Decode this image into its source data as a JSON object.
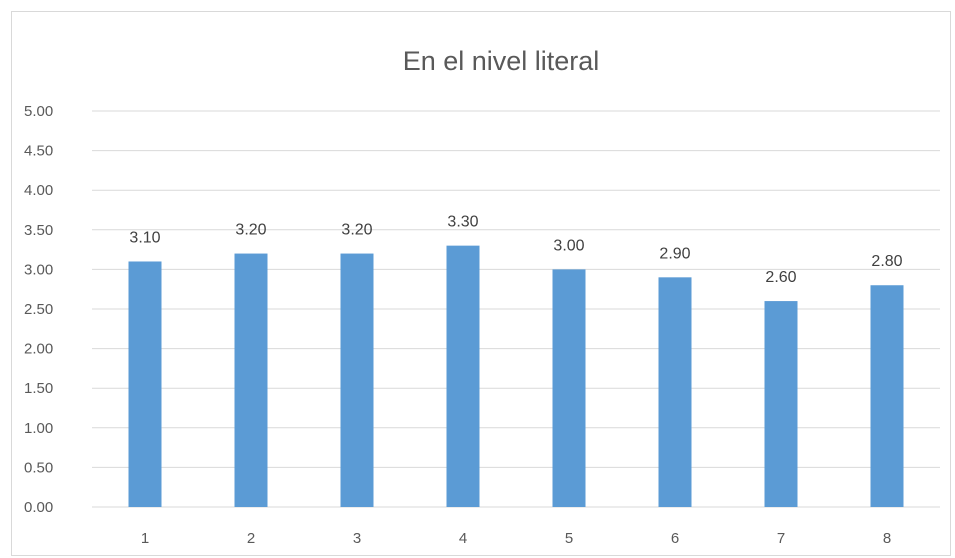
{
  "chart_data": {
    "type": "bar",
    "title": "En el nivel literal",
    "xlabel": "",
    "ylabel": "",
    "categories": [
      "1",
      "2",
      "3",
      "4",
      "5",
      "6",
      "7",
      "8"
    ],
    "values": [
      3.1,
      3.2,
      3.2,
      3.3,
      3.0,
      2.9,
      2.6,
      2.8
    ],
    "data_labels": [
      "3.10",
      "3.20",
      "3.20",
      "3.30",
      "3.00",
      "2.90",
      "2.60",
      "2.80"
    ],
    "ylim": [
      0,
      5
    ],
    "yticks": [
      "0.00",
      "0.50",
      "1.00",
      "1.50",
      "2.00",
      "2.50",
      "3.00",
      "3.50",
      "4.00",
      "4.50",
      "5.00"
    ],
    "grid": true,
    "legend": "none",
    "bar_color": "#5b9bd5",
    "grid_color": "#d9d9d9",
    "text_color": "#595959"
  }
}
